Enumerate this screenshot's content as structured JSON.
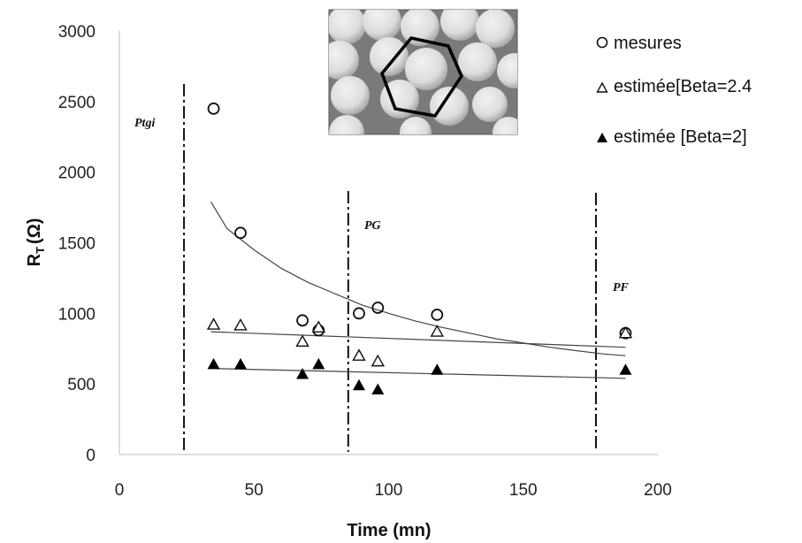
{
  "chart_data": {
    "type": "scatter",
    "xlabel": "Time (mn)",
    "ylabel": {
      "main": "R",
      "sub": "T",
      "unit": "(Ω)"
    },
    "xlim": [
      0,
      200
    ],
    "ylim": [
      0,
      3000
    ],
    "x_ticks": [
      "0",
      "50",
      "100",
      "150",
      "200"
    ],
    "y_ticks": [
      "0",
      "500",
      "1000",
      "1500",
      "2000",
      "2500",
      "3000"
    ],
    "grid": false,
    "legend_position": "top-right",
    "series": [
      {
        "name": "mesures",
        "marker": "open-circle",
        "x": [
          35,
          45,
          68,
          74,
          89,
          96,
          118,
          188
        ],
        "y": [
          2450,
          1570,
          950,
          880,
          1000,
          1040,
          990,
          860
        ]
      },
      {
        "name": "estimée[Beta=2.4",
        "marker": "open-triangle",
        "x": [
          35,
          45,
          68,
          74,
          89,
          96,
          118,
          188
        ],
        "y": [
          920,
          915,
          800,
          900,
          700,
          660,
          870,
          860
        ]
      },
      {
        "name": "estimée [Beta=2]",
        "marker": "filled-triangle",
        "x": [
          35,
          45,
          68,
          74,
          89,
          96,
          118,
          188
        ],
        "y": [
          640,
          640,
          570,
          640,
          490,
          460,
          600,
          600
        ]
      }
    ],
    "trendlines": [
      {
        "for": "mesures",
        "type": "power",
        "x": [
          34,
          40,
          50,
          60,
          70,
          80,
          90,
          100,
          110,
          120,
          130,
          140,
          150,
          160,
          170,
          180,
          188
        ],
        "y": [
          1790,
          1600,
          1450,
          1320,
          1220,
          1140,
          1060,
          1000,
          945,
          900,
          860,
          820,
          790,
          760,
          735,
          712,
          700
        ]
      },
      {
        "for": "estimée[Beta=2.4",
        "type": "linear",
        "x": [
          34,
          188
        ],
        "y": [
          870,
          760
        ]
      },
      {
        "for": "estimée [Beta=2]",
        "type": "linear",
        "x": [
          34,
          188
        ],
        "y": [
          610,
          540
        ]
      }
    ],
    "phase_lines": [
      {
        "label": "Ptgi",
        "x": 24
      },
      {
        "label": "PG",
        "x": 85
      },
      {
        "label": "PF",
        "x": 177
      }
    ]
  }
}
